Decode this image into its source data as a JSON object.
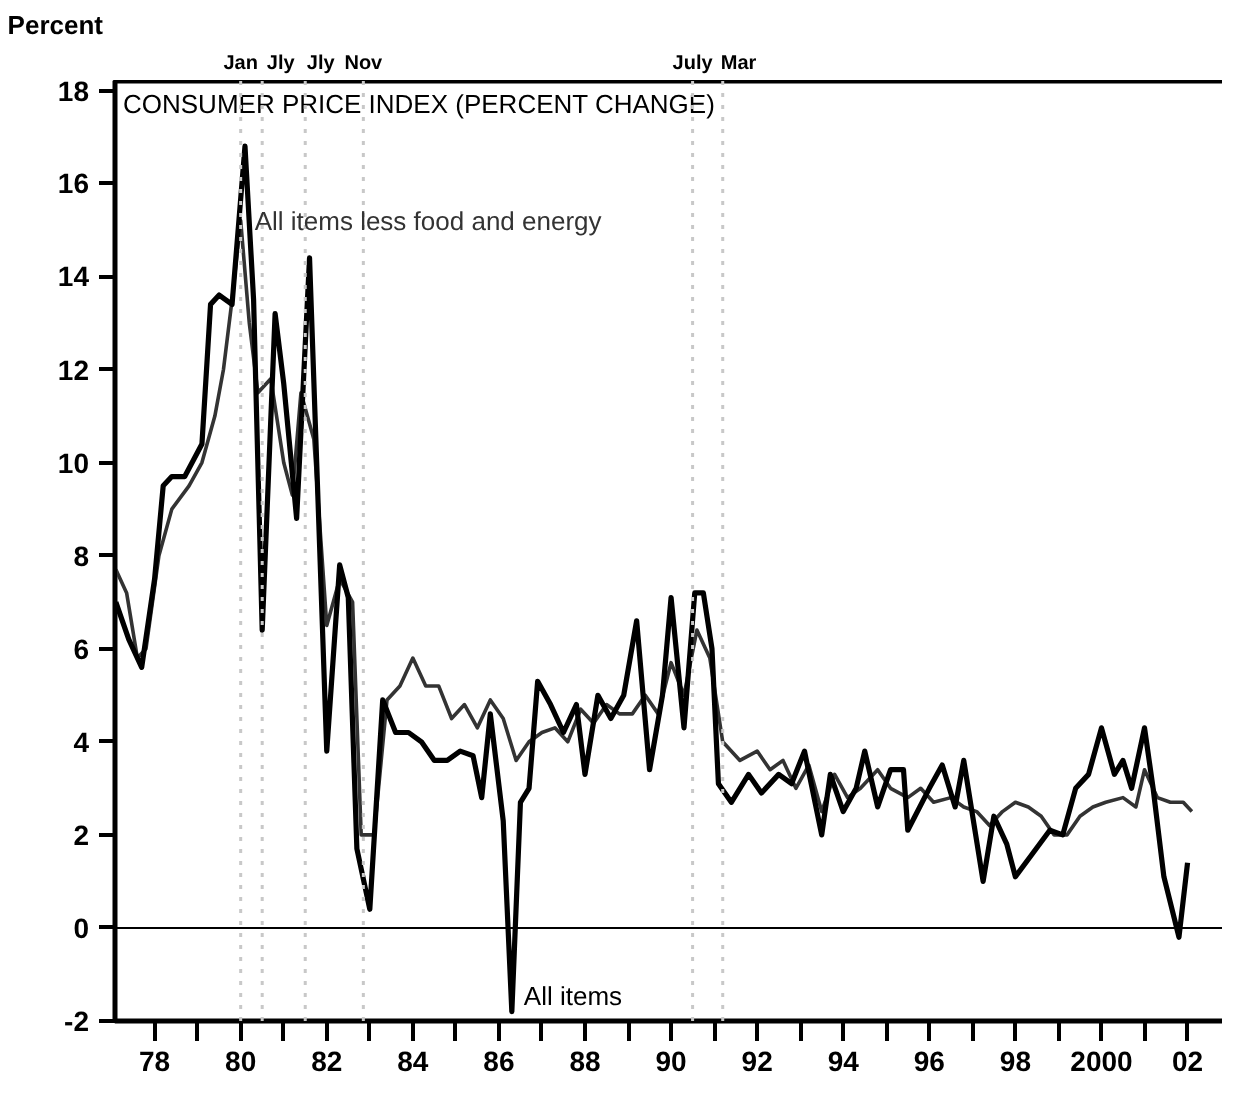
{
  "chart_data": {
    "type": "line",
    "title": "CONSUMER PRICE INDEX (PERCENT CHANGE)",
    "ylabel": "Percent",
    "xlim": [
      1977.08,
      2002.87
    ],
    "ylim": [
      -2,
      18.2
    ],
    "yticks": [
      -2,
      0,
      2,
      4,
      6,
      8,
      10,
      12,
      14,
      16,
      18
    ],
    "xticks": [
      {
        "value": 1978,
        "label": "78"
      },
      {
        "value": 1979,
        "label": null
      },
      {
        "value": 1980,
        "label": "80"
      },
      {
        "value": 1981,
        "label": null
      },
      {
        "value": 1982,
        "label": "82"
      },
      {
        "value": 1983,
        "label": null
      },
      {
        "value": 1984,
        "label": "84"
      },
      {
        "value": 1985,
        "label": null
      },
      {
        "value": 1986,
        "label": "86"
      },
      {
        "value": 1987,
        "label": null
      },
      {
        "value": 1988,
        "label": "88"
      },
      {
        "value": 1989,
        "label": null
      },
      {
        "value": 1990,
        "label": "90"
      },
      {
        "value": 1991,
        "label": null
      },
      {
        "value": 1992,
        "label": "92"
      },
      {
        "value": 1993,
        "label": null
      },
      {
        "value": 1994,
        "label": "94"
      },
      {
        "value": 1995,
        "label": null
      },
      {
        "value": 1996,
        "label": "96"
      },
      {
        "value": 1997,
        "label": null
      },
      {
        "value": 1998,
        "label": "98"
      },
      {
        "value": 1999,
        "label": null
      },
      {
        "value": 2000,
        "label": "2000"
      },
      {
        "value": 2001,
        "label": null
      },
      {
        "value": 2002,
        "label": "02"
      }
    ],
    "grid": false,
    "ref_lines": [
      {
        "axis": "y",
        "value": 0,
        "label": null,
        "color": "#000000",
        "line_style": "solid"
      },
      {
        "axis": "x",
        "value": 1980.0,
        "label": "Jan",
        "color": "#c8c8c8",
        "line_style": "dotted"
      },
      {
        "axis": "x",
        "value": 1980.5,
        "label": "Jly",
        "color": "#c8c8c8",
        "line_style": "dotted"
      },
      {
        "axis": "x",
        "value": 1981.5,
        "label": "Jly",
        "color": "#c8c8c8",
        "line_style": "dotted"
      },
      {
        "axis": "x",
        "value": 1982.85,
        "label": "Nov",
        "color": "#c8c8c8",
        "line_style": "dotted"
      },
      {
        "axis": "x",
        "value": 1990.5,
        "label": "July",
        "color": "#c8c8c8",
        "line_style": "dotted"
      },
      {
        "axis": "x",
        "value": 1991.2,
        "label": "Mar",
        "color": "#c8c8c8",
        "line_style": "dotted"
      }
    ],
    "series": [
      {
        "name": "All items less food and energy",
        "color": "#333333",
        "x": [
          1977.1,
          1977.35,
          1977.6,
          1977.8,
          1978.1,
          1978.4,
          1978.8,
          1979.1,
          1979.4,
          1979.6,
          1979.8,
          1980.0,
          1980.2,
          1980.4,
          1980.7,
          1981.0,
          1981.2,
          1981.4,
          1981.7,
          1982.0,
          1982.3,
          1982.6,
          1982.8,
          1983.1,
          1983.4,
          1983.7,
          1984.0,
          1984.3,
          1984.6,
          1984.9,
          1985.2,
          1985.5,
          1985.8,
          1986.1,
          1986.4,
          1986.7,
          1987.0,
          1987.3,
          1987.6,
          1987.9,
          1988.2,
          1988.5,
          1988.8,
          1989.1,
          1989.4,
          1989.7,
          1990.0,
          1990.3,
          1990.6,
          1990.9,
          1991.2,
          1991.6,
          1992.0,
          1992.3,
          1992.6,
          1992.9,
          1993.2,
          1993.5,
          1993.8,
          1994.1,
          1994.4,
          1994.8,
          1995.1,
          1995.5,
          1995.8,
          1996.1,
          1996.5,
          1996.8,
          1997.1,
          1997.4,
          1997.7,
          1998.0,
          1998.3,
          1998.6,
          1998.9,
          1999.2,
          1999.5,
          1999.8,
          2000.1,
          2000.5,
          2000.8,
          2001.0,
          2001.3,
          2001.6,
          2001.9,
          2002.1
        ],
        "values": [
          7.7,
          7.2,
          5.8,
          6.0,
          8.0,
          9.0,
          9.5,
          10.0,
          11.0,
          12.0,
          13.5,
          15.2,
          13.0,
          11.5,
          11.8,
          10.0,
          9.3,
          11.5,
          10.5,
          6.5,
          7.5,
          7.0,
          2.0,
          2.0,
          4.9,
          5.2,
          5.8,
          5.2,
          5.2,
          4.5,
          4.8,
          4.3,
          4.9,
          4.5,
          3.6,
          4.0,
          4.2,
          4.3,
          4.0,
          4.7,
          4.4,
          4.8,
          4.6,
          4.6,
          5.0,
          4.6,
          5.7,
          5.0,
          6.4,
          5.8,
          4.0,
          3.6,
          3.8,
          3.4,
          3.6,
          3.0,
          3.5,
          2.5,
          3.3,
          2.8,
          3.0,
          3.4,
          3.0,
          2.8,
          3.0,
          2.7,
          2.8,
          2.6,
          2.5,
          2.2,
          2.5,
          2.7,
          2.6,
          2.4,
          2.0,
          2.0,
          2.4,
          2.6,
          2.7,
          2.8,
          2.6,
          3.4,
          2.8,
          2.7,
          2.7,
          2.5
        ]
      },
      {
        "name": "All items",
        "color": "#000000",
        "x": [
          1977.1,
          1977.4,
          1977.7,
          1978.0,
          1978.2,
          1978.4,
          1978.7,
          1979.1,
          1979.3,
          1979.5,
          1979.8,
          1980.1,
          1980.3,
          1980.5,
          1980.8,
          1981.0,
          1981.3,
          1981.6,
          1982.0,
          1982.3,
          1982.5,
          1982.7,
          1983.0,
          1983.3,
          1983.6,
          1983.9,
          1984.2,
          1984.5,
          1984.8,
          1985.1,
          1985.4,
          1985.6,
          1985.8,
          1986.1,
          1986.3,
          1986.5,
          1986.7,
          1986.9,
          1987.2,
          1987.5,
          1987.8,
          1988.0,
          1988.3,
          1988.6,
          1988.9,
          1989.2,
          1989.5,
          1989.8,
          1990.0,
          1990.3,
          1990.55,
          1990.75,
          1990.95,
          1991.1,
          1991.4,
          1991.8,
          1992.1,
          1992.5,
          1992.8,
          1993.1,
          1993.5,
          1993.7,
          1994.0,
          1994.3,
          1994.5,
          1994.8,
          1995.1,
          1995.4,
          1995.5,
          1996.0,
          1996.3,
          1996.6,
          1996.8,
          1997.25,
          1997.5,
          1997.8,
          1998.0,
          1998.4,
          1998.8,
          1999.1,
          1999.4,
          1999.7,
          2000.0,
          2000.3,
          2000.5,
          2000.7,
          2001.0,
          2001.2,
          2001.45,
          2001.8,
          2002.0
        ],
        "values": [
          7.0,
          6.2,
          5.6,
          7.5,
          9.5,
          9.7,
          9.7,
          10.4,
          13.4,
          13.6,
          13.4,
          16.8,
          13.5,
          6.4,
          13.2,
          11.7,
          8.8,
          14.4,
          3.8,
          7.8,
          7.1,
          1.7,
          0.4,
          4.9,
          4.2,
          4.2,
          4.0,
          3.6,
          3.6,
          3.8,
          3.7,
          2.8,
          4.6,
          2.3,
          -1.8,
          2.7,
          3.0,
          5.3,
          4.8,
          4.2,
          4.8,
          3.3,
          5.0,
          4.5,
          5.0,
          6.6,
          3.4,
          5.0,
          7.1,
          4.3,
          7.2,
          7.2,
          6.0,
          3.1,
          2.7,
          3.3,
          2.9,
          3.3,
          3.1,
          3.8,
          2.0,
          3.3,
          2.5,
          3.0,
          3.8,
          2.6,
          3.4,
          3.4,
          2.1,
          3.0,
          3.5,
          2.6,
          3.6,
          1.0,
          2.4,
          1.8,
          1.1,
          1.6,
          2.1,
          2.0,
          3.0,
          3.3,
          4.3,
          3.3,
          3.6,
          3.0,
          4.3,
          3.0,
          1.1,
          -0.2,
          1.4
        ]
      }
    ]
  }
}
